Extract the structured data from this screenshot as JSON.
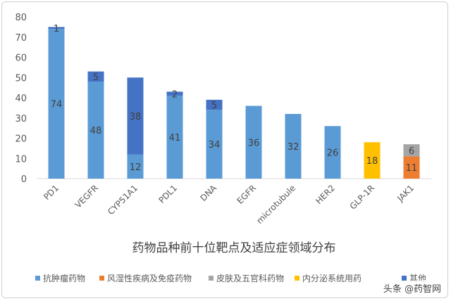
{
  "chart_data": {
    "type": "bar",
    "stacked": true,
    "title": "药物品种前十位靶点及适应症领域分布",
    "categories": [
      "PD1",
      "VEGFR",
      "CYP51A1",
      "PDL1",
      "DNA",
      "EGFR",
      "microtubule",
      "HER2",
      "GLP-1R",
      "JAK1"
    ],
    "series": [
      {
        "name": "抗肿瘤药物",
        "color": "#5b9bd5",
        "values": [
          74,
          48,
          12,
          41,
          34,
          36,
          32,
          26,
          0,
          0
        ]
      },
      {
        "name": "风湿性疾病及免疫药物",
        "color": "#ed7d31",
        "values": [
          0,
          0,
          0,
          0,
          0,
          0,
          0,
          0,
          0,
          11
        ]
      },
      {
        "name": "皮肤及五官科药物",
        "color": "#a5a5a5",
        "values": [
          0,
          0,
          0,
          0,
          0,
          0,
          0,
          0,
          0,
          6
        ]
      },
      {
        "name": "内分泌系统用药",
        "color": "#ffc000",
        "values": [
          0,
          0,
          0,
          0,
          0,
          0,
          0,
          0,
          18,
          0
        ]
      },
      {
        "name": "其他",
        "color": "#4472c4",
        "values": [
          1,
          5,
          38,
          2,
          5,
          0,
          0,
          0,
          0,
          0
        ]
      }
    ],
    "ylim": [
      0,
      80
    ],
    "yticks": [
      0,
      10,
      20,
      30,
      40,
      50,
      60,
      70,
      80
    ],
    "grid": false,
    "legend_position": "bottom"
  },
  "watermark": "头条 @药智网"
}
